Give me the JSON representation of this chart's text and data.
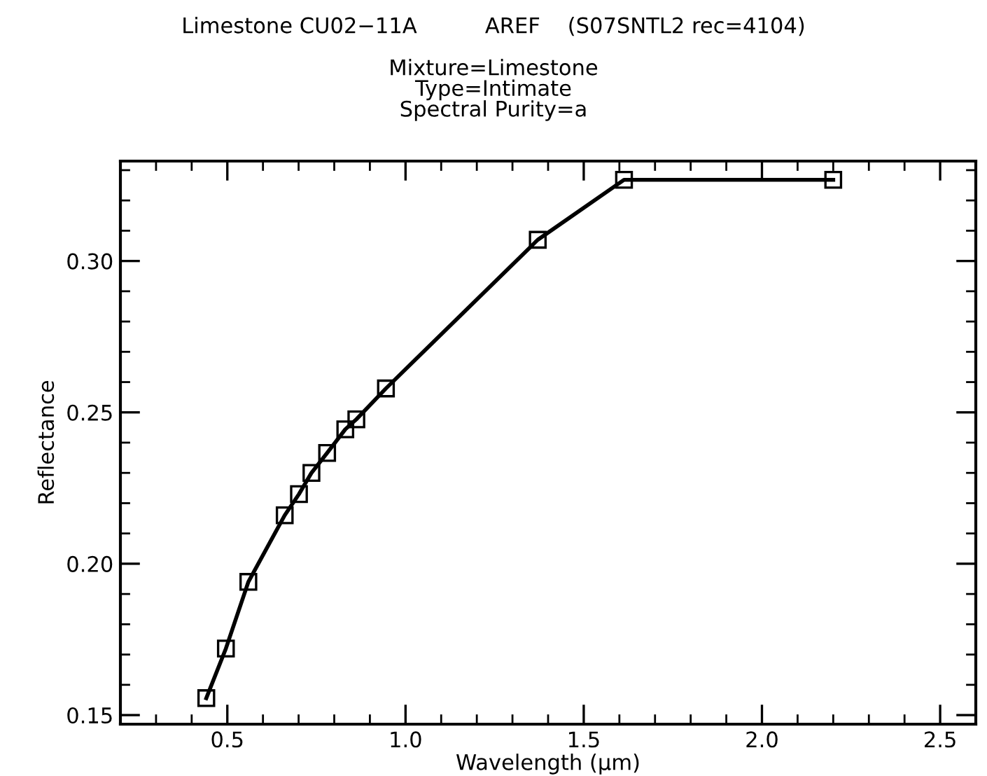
{
  "chart_data": {
    "type": "line",
    "title": "Limestone CU02−11A          AREF    (S07SNTL2 rec=4104)",
    "subtitle": "Mixture=Limestone\nType=Intimate\nSpectral Purity=a",
    "xlabel": "Wavelength (μm)",
    "ylabel": "Reflectance",
    "x": [
      0.441,
      0.496,
      0.559,
      0.661,
      0.701,
      0.736,
      0.78,
      0.831,
      0.862,
      0.945,
      1.371,
      1.613,
      2.2
    ],
    "series": [
      {
        "color": "#000000",
        "values": [
          0.1556,
          0.172,
          0.194,
          0.216,
          0.223,
          0.23,
          0.2366,
          0.2444,
          0.2477,
          0.2579,
          0.307,
          0.3268,
          0.3268
        ]
      }
    ],
    "marker": "square",
    "line_style": "solid",
    "grid": false,
    "legend": false,
    "xlim": [
      0.2,
      2.6
    ],
    "ylim": [
      0.147,
      0.333
    ],
    "xticks": [
      0.5,
      {
        "value": 1,
        "label": "1.0"
      },
      1.5,
      {
        "value": 2,
        "label": "2.0"
      },
      2.5
    ],
    "yticks": [
      0.15,
      {
        "value": 0.2,
        "label": "0.20"
      },
      0.25,
      {
        "value": 0.3,
        "label": "0.30"
      }
    ]
  }
}
